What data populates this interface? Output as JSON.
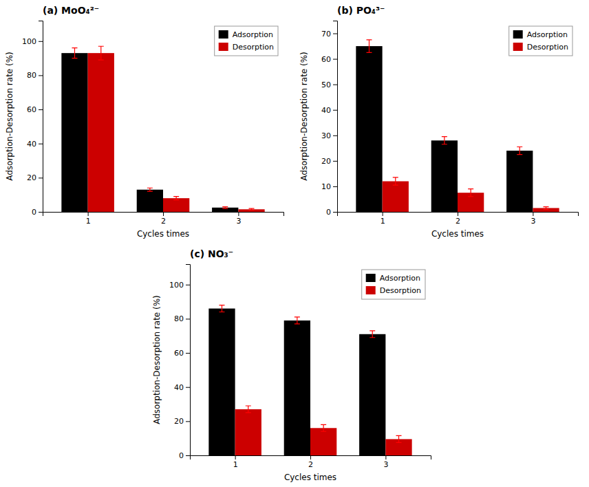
{
  "chart_data": [
    {
      "type": "bar",
      "title": "(a) MoO₄²⁻",
      "x_label": "Cycles times",
      "y_label": "Adsorption-Desorption rate (%)",
      "x": [
        1,
        2,
        3
      ],
      "xlim": [
        0.4,
        3.6
      ],
      "xticks": [
        1,
        2,
        3
      ],
      "ylim": [
        0,
        112
      ],
      "yticks": [
        0,
        20,
        40,
        60,
        80,
        100
      ],
      "grid": false,
      "legend": "upper right",
      "series": [
        {
          "name": "Adsorption",
          "color": "#000000",
          "values": [
            93,
            13,
            2.5
          ],
          "errors": [
            3,
            1,
            0.5
          ]
        },
        {
          "name": "Desorption",
          "color": "#cc0000",
          "values": [
            93,
            8,
            1.5
          ],
          "errors": [
            4,
            1,
            0.5
          ]
        }
      ]
    },
    {
      "type": "bar",
      "title": "(b) PO₄³⁻",
      "x_label": "Cycles times",
      "y_label": "Adsorption-Desorption rate (%)",
      "x": [
        1,
        2,
        3
      ],
      "xlim": [
        0.4,
        3.6
      ],
      "xticks": [
        1,
        2,
        3
      ],
      "ylim": [
        0,
        75
      ],
      "yticks": [
        0,
        10,
        20,
        30,
        40,
        50,
        60,
        70
      ],
      "grid": false,
      "legend": "upper right",
      "series": [
        {
          "name": "Adsorption",
          "color": "#000000",
          "values": [
            65,
            28,
            24
          ],
          "errors": [
            2.5,
            1.5,
            1.5
          ]
        },
        {
          "name": "Desorption",
          "color": "#cc0000",
          "values": [
            12,
            7.5,
            1.5
          ],
          "errors": [
            1.5,
            1.5,
            0.5
          ]
        }
      ]
    },
    {
      "type": "bar",
      "title": "(c) NO₃⁻",
      "x_label": "Cycles times",
      "y_label": "Adsorption-Desorption rate (%)",
      "x": [
        1,
        2,
        3
      ],
      "xlim": [
        0.4,
        3.6
      ],
      "xticks": [
        1,
        2,
        3
      ],
      "ylim": [
        0,
        112
      ],
      "yticks": [
        0,
        20,
        40,
        60,
        80,
        100
      ],
      "grid": false,
      "legend": "upper right",
      "series": [
        {
          "name": "Adsorption",
          "color": "#000000",
          "values": [
            86,
            79,
            71
          ],
          "errors": [
            2,
            2,
            2
          ]
        },
        {
          "name": "Desorption",
          "color": "#cc0000",
          "values": [
            27,
            16,
            9.5
          ],
          "errors": [
            2,
            2,
            2
          ]
        }
      ]
    }
  ]
}
